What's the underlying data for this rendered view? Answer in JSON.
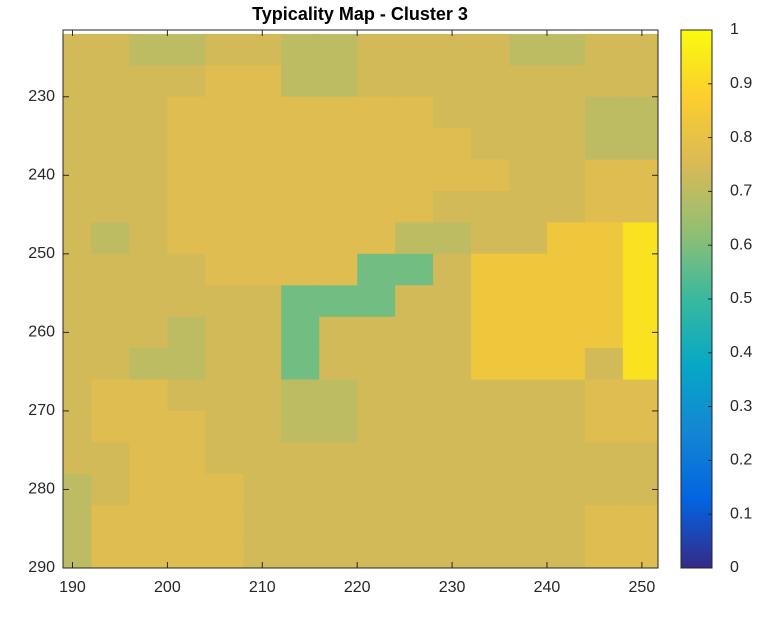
{
  "chart_data": {
    "type": "heatmap",
    "title": "Typicality Map - Cluster 3",
    "x": [
      190,
      194,
      198,
      202,
      206,
      210,
      214,
      218,
      222,
      226,
      230,
      234,
      238,
      242,
      246,
      250
    ],
    "y": [
      224,
      228,
      232,
      236,
      240,
      244,
      248,
      252,
      256,
      260,
      264,
      268,
      272,
      276,
      280,
      284,
      288
    ],
    "values": [
      [
        0.74,
        0.74,
        0.7,
        0.7,
        0.74,
        0.74,
        0.7,
        0.7,
        0.74,
        0.74,
        0.74,
        0.74,
        0.7,
        0.7,
        0.74,
        0.74
      ],
      [
        0.74,
        0.74,
        0.74,
        0.74,
        0.77,
        0.77,
        0.7,
        0.7,
        0.74,
        0.74,
        0.74,
        0.74,
        0.74,
        0.74,
        0.74,
        0.74
      ],
      [
        0.74,
        0.74,
        0.74,
        0.77,
        0.77,
        0.77,
        0.77,
        0.77,
        0.77,
        0.77,
        0.74,
        0.74,
        0.74,
        0.74,
        0.7,
        0.7
      ],
      [
        0.74,
        0.74,
        0.74,
        0.77,
        0.77,
        0.77,
        0.77,
        0.77,
        0.77,
        0.77,
        0.77,
        0.74,
        0.74,
        0.74,
        0.7,
        0.7
      ],
      [
        0.74,
        0.74,
        0.74,
        0.77,
        0.77,
        0.77,
        0.77,
        0.77,
        0.77,
        0.77,
        0.77,
        0.77,
        0.74,
        0.74,
        0.77,
        0.77
      ],
      [
        0.74,
        0.74,
        0.74,
        0.77,
        0.77,
        0.77,
        0.77,
        0.77,
        0.77,
        0.77,
        0.74,
        0.74,
        0.74,
        0.74,
        0.77,
        0.77
      ],
      [
        0.74,
        0.7,
        0.74,
        0.77,
        0.77,
        0.77,
        0.77,
        0.77,
        0.77,
        0.7,
        0.7,
        0.74,
        0.74,
        0.83,
        0.83,
        0.93
      ],
      [
        0.74,
        0.74,
        0.74,
        0.74,
        0.77,
        0.77,
        0.77,
        0.77,
        0.58,
        0.58,
        0.74,
        0.83,
        0.83,
        0.83,
        0.83,
        0.93
      ],
      [
        0.74,
        0.74,
        0.74,
        0.74,
        0.74,
        0.74,
        0.58,
        0.58,
        0.58,
        0.74,
        0.74,
        0.83,
        0.83,
        0.83,
        0.83,
        0.93
      ],
      [
        0.74,
        0.74,
        0.74,
        0.7,
        0.74,
        0.74,
        0.58,
        0.74,
        0.74,
        0.74,
        0.74,
        0.83,
        0.83,
        0.83,
        0.83,
        0.93
      ],
      [
        0.74,
        0.74,
        0.7,
        0.7,
        0.74,
        0.74,
        0.58,
        0.74,
        0.74,
        0.74,
        0.74,
        0.83,
        0.83,
        0.83,
        0.74,
        0.93
      ],
      [
        0.74,
        0.77,
        0.77,
        0.74,
        0.74,
        0.74,
        0.7,
        0.7,
        0.74,
        0.74,
        0.74,
        0.74,
        0.74,
        0.74,
        0.77,
        0.77
      ],
      [
        0.74,
        0.77,
        0.77,
        0.77,
        0.74,
        0.74,
        0.7,
        0.7,
        0.74,
        0.74,
        0.74,
        0.74,
        0.74,
        0.74,
        0.77,
        0.77
      ],
      [
        0.74,
        0.74,
        0.77,
        0.77,
        0.74,
        0.74,
        0.74,
        0.74,
        0.74,
        0.74,
        0.74,
        0.74,
        0.74,
        0.74,
        0.74,
        0.74
      ],
      [
        0.7,
        0.74,
        0.77,
        0.77,
        0.77,
        0.74,
        0.74,
        0.74,
        0.74,
        0.74,
        0.74,
        0.74,
        0.74,
        0.74,
        0.74,
        0.74
      ],
      [
        0.7,
        0.77,
        0.77,
        0.77,
        0.77,
        0.74,
        0.74,
        0.74,
        0.74,
        0.74,
        0.74,
        0.74,
        0.74,
        0.74,
        0.77,
        0.77
      ],
      [
        0.7,
        0.77,
        0.77,
        0.77,
        0.77,
        0.74,
        0.74,
        0.74,
        0.74,
        0.74,
        0.74,
        0.74,
        0.74,
        0.74,
        0.77,
        0.77
      ]
    ],
    "cell_size": 4,
    "xlim": [
      189,
      251.7
    ],
    "ylim": [
      221.5,
      290
    ],
    "xticks": [
      190,
      200,
      210,
      220,
      230,
      240,
      250
    ],
    "yticks": [
      230,
      240,
      250,
      260,
      270,
      280,
      290
    ],
    "y_reversed": true,
    "colormap": "parula",
    "clim": [
      0,
      1
    ],
    "colorbar_ticks": [
      0,
      0.1,
      0.2,
      0.3,
      0.4,
      0.5,
      0.6,
      0.7,
      0.8,
      0.9,
      1
    ]
  }
}
